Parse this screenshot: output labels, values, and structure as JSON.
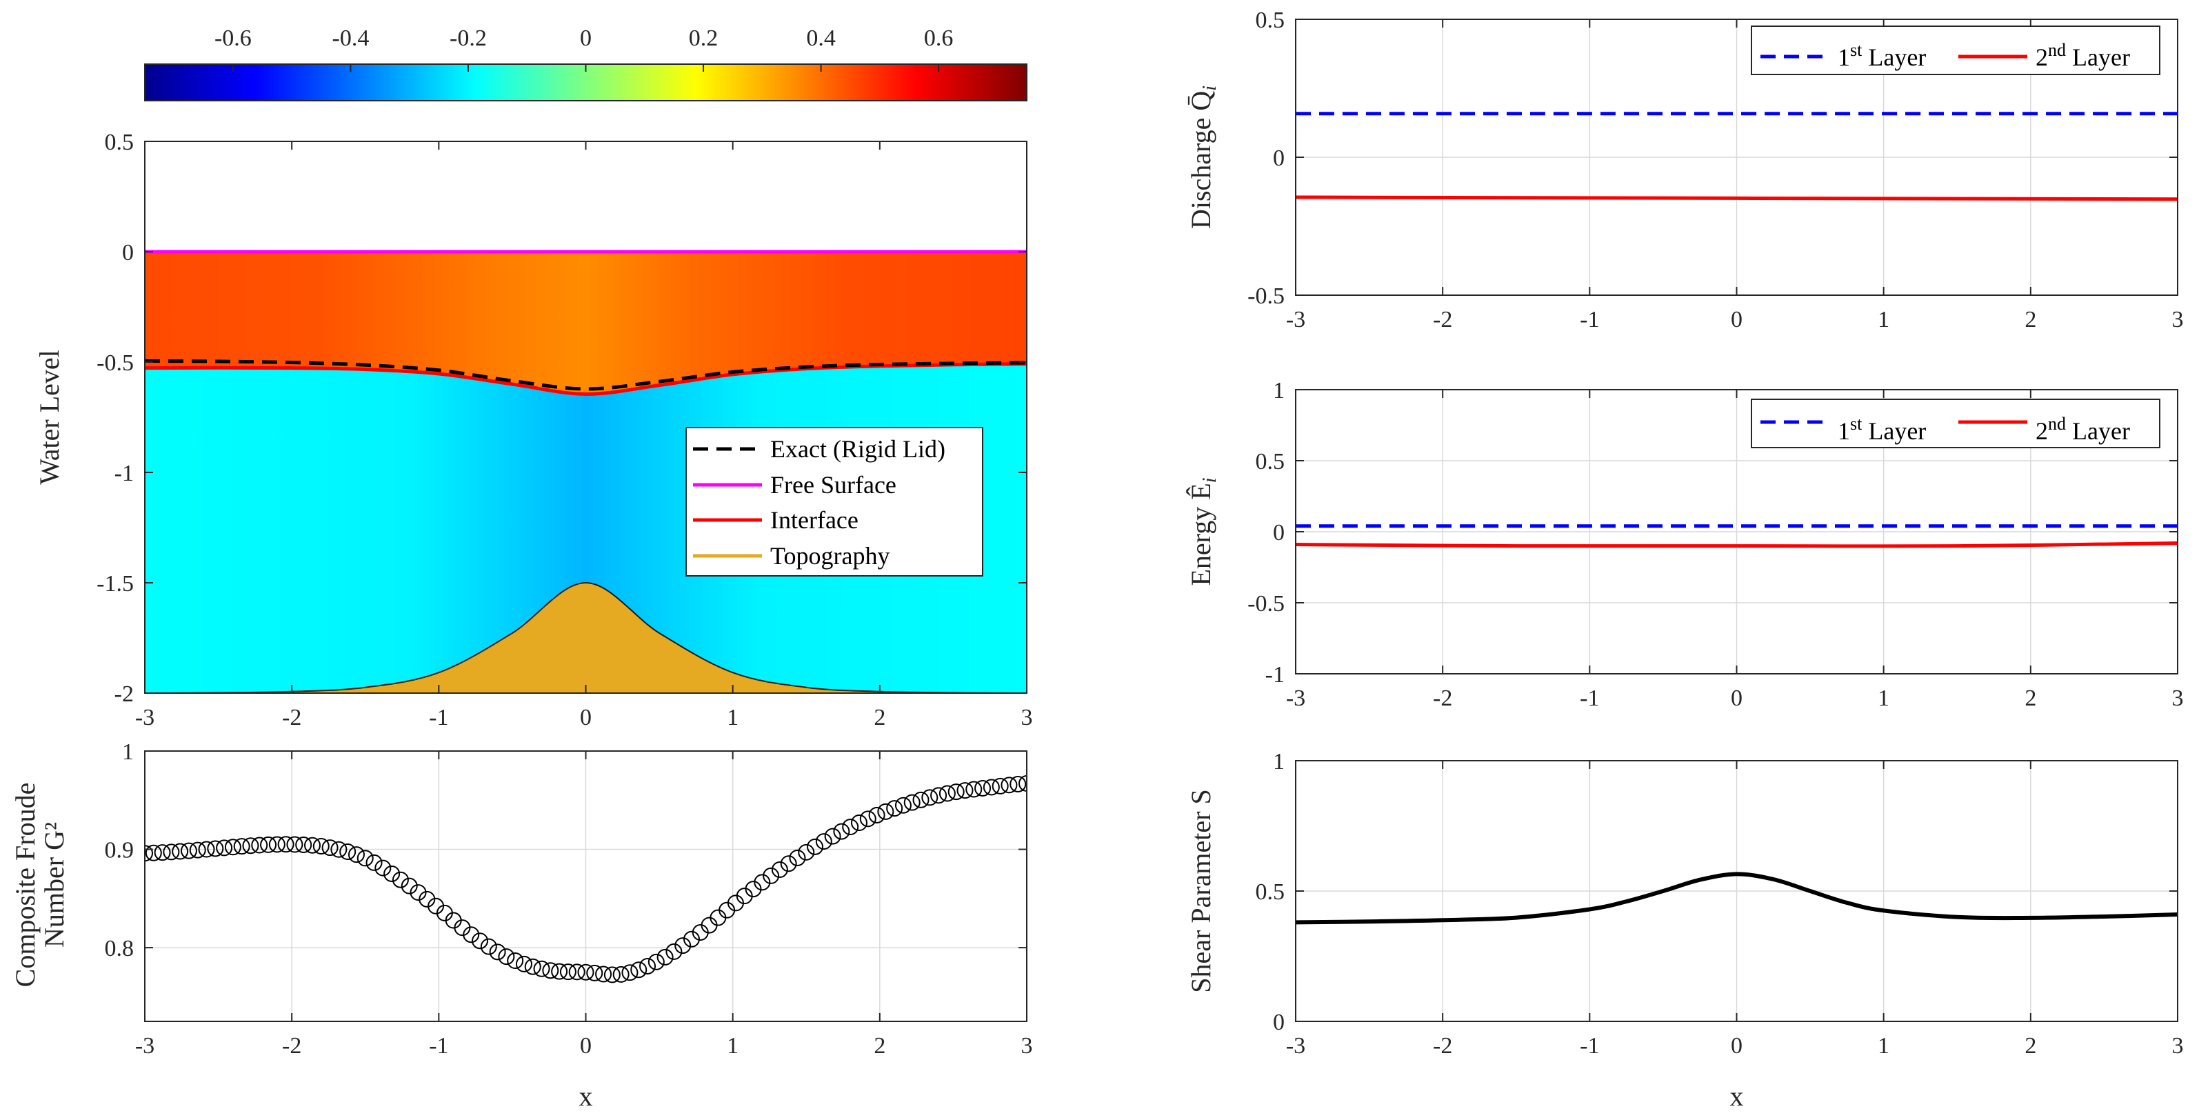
{
  "colors": {
    "free_surface": "#ff00ff",
    "interface": "#ff0000",
    "exact": "#000000",
    "topography": "#e6a922",
    "layer1": "#0000ff",
    "layer2": "#ff0000",
    "lower_layer_fill": "#00ffff",
    "shear": "#000000"
  },
  "chart_data": [
    {
      "id": "water_level",
      "type": "area",
      "xlabel": "",
      "ylabel": "Water Level",
      "xlim": [
        -3,
        3
      ],
      "ylim": [
        -2,
        0.5
      ],
      "xticks": [
        "-3",
        "-2",
        "-1",
        "0",
        "1",
        "2",
        "3"
      ],
      "yticks": [
        "0.5",
        "0",
        "-0.5",
        "-1",
        "-1.5",
        "-2"
      ],
      "colorbar": {
        "range": [
          -0.75,
          0.75
        ],
        "ticks": [
          "-0.6",
          "-0.4",
          "-0.2",
          "0",
          "0.2",
          "0.4",
          "0.6"
        ],
        "tick_values": [
          -0.6,
          -0.4,
          -0.2,
          0,
          0.2,
          0.4,
          0.6
        ]
      },
      "x": [
        -3,
        -2.5,
        -2,
        -1.5,
        -1,
        -0.5,
        0,
        0.5,
        1,
        1.5,
        2,
        2.5,
        3
      ],
      "series": [
        {
          "name": "Exact (Rigid Lid)",
          "style": "dashed",
          "values": [
            -0.495,
            -0.497,
            -0.502,
            -0.513,
            -0.537,
            -0.585,
            -0.622,
            -0.588,
            -0.545,
            -0.522,
            -0.511,
            -0.506,
            -0.503
          ]
        },
        {
          "name": "Free Surface",
          "style": "solid",
          "values": [
            0,
            0,
            0,
            0,
            0,
            0,
            0,
            0,
            0,
            0,
            0,
            0,
            0
          ]
        },
        {
          "name": "Interface",
          "style": "solid",
          "values": [
            -0.527,
            -0.526,
            -0.527,
            -0.533,
            -0.553,
            -0.6,
            -0.645,
            -0.605,
            -0.556,
            -0.53,
            -0.518,
            -0.512,
            -0.508
          ]
        },
        {
          "name": "Topography",
          "style": "filled",
          "values": [
            -2.0,
            -1.998,
            -1.993,
            -1.974,
            -1.907,
            -1.728,
            -1.5,
            -1.728,
            -1.907,
            -1.974,
            -1.993,
            -1.998,
            -2.0
          ]
        }
      ],
      "legend": [
        "Exact (Rigid Lid)",
        "Free Surface",
        "Interface",
        "Topography"
      ],
      "legend_position": "right"
    },
    {
      "id": "froude",
      "type": "scatter",
      "xlabel": "x",
      "ylabel_line1": "Composite Froude",
      "ylabel_line2": "Number G²",
      "xlim": [
        -3,
        3
      ],
      "ylim": [
        0.725,
        1
      ],
      "xticks": [
        "-3",
        "-2",
        "-1",
        "0",
        "1",
        "2",
        "3"
      ],
      "yticks": [
        "1",
        "0.9",
        "0.8"
      ],
      "ytick_values": [
        1,
        0.9,
        0.8
      ],
      "x": [
        -3,
        -2.75,
        -2.5,
        -2.25,
        -2,
        -1.75,
        -1.5,
        -1.25,
        -1,
        -0.75,
        -0.5,
        -0.25,
        0,
        0.25,
        0.5,
        0.75,
        1,
        1.25,
        1.5,
        1.75,
        2,
        2.25,
        2.5,
        2.75,
        3
      ],
      "values": [
        0.896,
        0.898,
        0.901,
        0.904,
        0.905,
        0.902,
        0.891,
        0.868,
        0.84,
        0.81,
        0.788,
        0.777,
        0.775,
        0.773,
        0.787,
        0.812,
        0.843,
        0.872,
        0.897,
        0.919,
        0.936,
        0.949,
        0.958,
        0.963,
        0.967
      ]
    },
    {
      "id": "discharge",
      "type": "line",
      "xlabel": "",
      "ylabel": "Discharge Q̄",
      "ylabel_sub": "i",
      "xlim": [
        -3,
        3
      ],
      "ylim": [
        -0.5,
        0.5
      ],
      "xticks": [
        "-3",
        "-2",
        "-1",
        "0",
        "1",
        "2",
        "3"
      ],
      "yticks": [
        "0.5",
        "0",
        "-0.5"
      ],
      "ytick_values": [
        0.5,
        0,
        -0.5
      ],
      "x": [
        -3,
        3
      ],
      "series": [
        {
          "name": "1st Layer",
          "base": "1",
          "sup": "st",
          "rest": " Layer",
          "style": "dashed",
          "values": [
            0.158,
            0.158
          ]
        },
        {
          "name": "2nd Layer",
          "base": "2",
          "sup": "nd",
          "rest": " Layer",
          "style": "solid",
          "values": [
            -0.145,
            -0.152
          ]
        }
      ],
      "legend_position": "top-right"
    },
    {
      "id": "energy",
      "type": "line",
      "xlabel": "",
      "ylabel": "Energy Ê",
      "ylabel_sub": "i",
      "xlim": [
        -3,
        3
      ],
      "ylim": [
        -1,
        1
      ],
      "xticks": [
        "-3",
        "-2",
        "-1",
        "0",
        "1",
        "2",
        "3"
      ],
      "yticks": [
        "1",
        "0.5",
        "0",
        "-0.5",
        "-1"
      ],
      "ytick_values": [
        1,
        0.5,
        0,
        -0.5,
        -1
      ],
      "x": [
        -3,
        -1.5,
        0,
        1.5,
        3
      ],
      "series": [
        {
          "name": "1st Layer",
          "base": "1",
          "sup": "st",
          "rest": " Layer",
          "style": "dashed",
          "values": [
            0.04,
            0.04,
            0.04,
            0.04,
            0.04
          ]
        },
        {
          "name": "2nd Layer",
          "base": "2",
          "sup": "nd",
          "rest": " Layer",
          "style": "solid",
          "values": [
            -0.09,
            -0.1,
            -0.1,
            -0.1,
            -0.08
          ]
        }
      ],
      "legend_position": "top-right"
    },
    {
      "id": "shear",
      "type": "line",
      "xlabel": "x",
      "ylabel": "Shear Parameter S",
      "xlim": [
        -3,
        3
      ],
      "ylim": [
        0,
        1
      ],
      "xticks": [
        "-3",
        "-2",
        "-1",
        "0",
        "1",
        "2",
        "3"
      ],
      "yticks": [
        "1",
        "0.5",
        "0"
      ],
      "ytick_values": [
        1,
        0.5,
        0
      ],
      "x": [
        -3,
        -2.5,
        -2,
        -1.5,
        -1,
        -0.75,
        -0.5,
        -0.25,
        0,
        0.25,
        0.5,
        0.75,
        1,
        1.5,
        2,
        2.5,
        3
      ],
      "values": [
        0.38,
        0.383,
        0.388,
        0.398,
        0.43,
        0.46,
        0.5,
        0.543,
        0.565,
        0.545,
        0.5,
        0.455,
        0.425,
        0.4,
        0.397,
        0.402,
        0.41
      ]
    }
  ]
}
